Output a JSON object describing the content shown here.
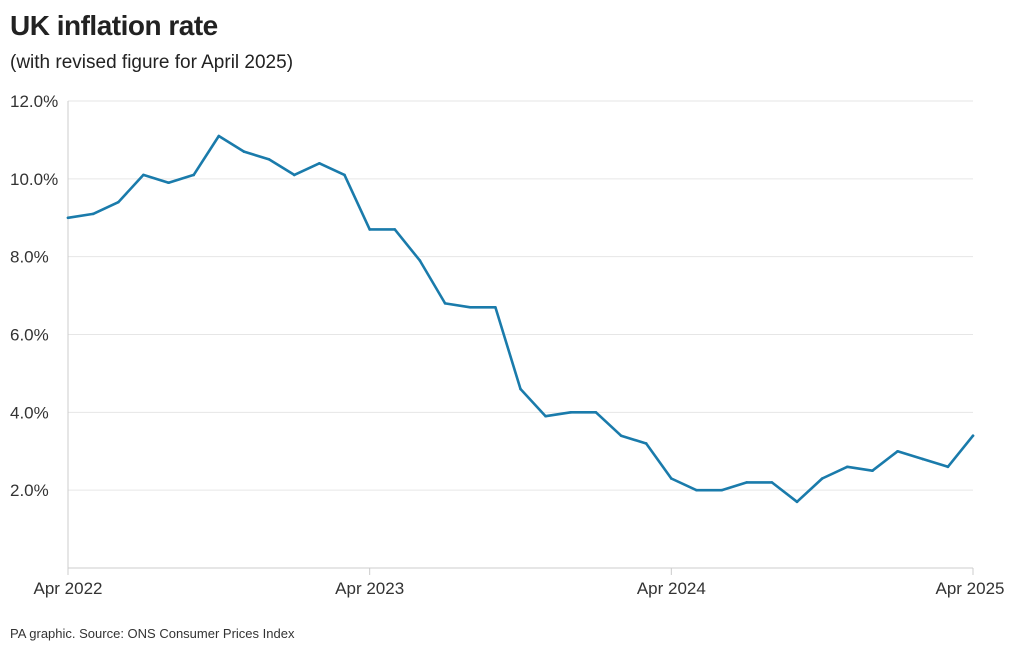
{
  "title": "UK inflation rate",
  "subtitle": "(with revised figure for April 2025)",
  "source": "PA graphic. Source: ONS Consumer Prices Index",
  "colors": {
    "line": "#1a7bab",
    "grid": "#e6e6e6",
    "axis": "#cccccc",
    "text": "#222222"
  },
  "chart_data": {
    "type": "line",
    "title": "UK inflation rate",
    "subtitle": "(with revised figure for April 2025)",
    "xlabel": "",
    "ylabel": "",
    "ylim": [
      0,
      12
    ],
    "yticks": [
      {
        "value": 2,
        "label": "2.0%"
      },
      {
        "value": 4,
        "label": "4.0%"
      },
      {
        "value": 6,
        "label": "6.0%"
      },
      {
        "value": 8,
        "label": "8.0%"
      },
      {
        "value": 10,
        "label": "10.0%"
      },
      {
        "value": 12,
        "label": "12.0%"
      }
    ],
    "xticks": [
      {
        "value": "2022-04",
        "label": "Apr 2022"
      },
      {
        "value": "2023-04",
        "label": "Apr 2023"
      },
      {
        "value": "2024-04",
        "label": "Apr 2024"
      },
      {
        "value": "2025-04",
        "label": "Apr 2025"
      }
    ],
    "grid": true,
    "legend": "none",
    "series": [
      {
        "color": "#1a7bab",
        "points": [
          {
            "x": "2022-04",
            "y": 9.0
          },
          {
            "x": "2022-05",
            "y": 9.1
          },
          {
            "x": "2022-06",
            "y": 9.4
          },
          {
            "x": "2022-07",
            "y": 10.1
          },
          {
            "x": "2022-08",
            "y": 9.9
          },
          {
            "x": "2022-09",
            "y": 10.1
          },
          {
            "x": "2022-10",
            "y": 11.1
          },
          {
            "x": "2022-11",
            "y": 10.7
          },
          {
            "x": "2022-12",
            "y": 10.5
          },
          {
            "x": "2023-01",
            "y": 10.1
          },
          {
            "x": "2023-02",
            "y": 10.4
          },
          {
            "x": "2023-03",
            "y": 10.1
          },
          {
            "x": "2023-04",
            "y": 8.7
          },
          {
            "x": "2023-05",
            "y": 8.7
          },
          {
            "x": "2023-06",
            "y": 7.9
          },
          {
            "x": "2023-07",
            "y": 6.8
          },
          {
            "x": "2023-08",
            "y": 6.7
          },
          {
            "x": "2023-09",
            "y": 6.7
          },
          {
            "x": "2023-10",
            "y": 4.6
          },
          {
            "x": "2023-11",
            "y": 3.9
          },
          {
            "x": "2023-12",
            "y": 4.0
          },
          {
            "x": "2024-01",
            "y": 4.0
          },
          {
            "x": "2024-02",
            "y": 3.4
          },
          {
            "x": "2024-03",
            "y": 3.2
          },
          {
            "x": "2024-04",
            "y": 2.3
          },
          {
            "x": "2024-05",
            "y": 2.0
          },
          {
            "x": "2024-06",
            "y": 2.0
          },
          {
            "x": "2024-07",
            "y": 2.2
          },
          {
            "x": "2024-08",
            "y": 2.2
          },
          {
            "x": "2024-09",
            "y": 1.7
          },
          {
            "x": "2024-10",
            "y": 2.3
          },
          {
            "x": "2024-11",
            "y": 2.6
          },
          {
            "x": "2024-12",
            "y": 2.5
          },
          {
            "x": "2025-01",
            "y": 3.0
          },
          {
            "x": "2025-02",
            "y": 2.8
          },
          {
            "x": "2025-03",
            "y": 2.6
          },
          {
            "x": "2025-04",
            "y": 3.4
          }
        ]
      }
    ]
  }
}
